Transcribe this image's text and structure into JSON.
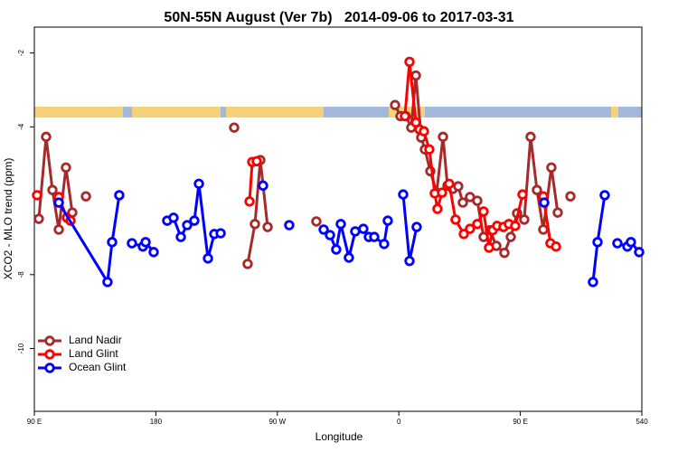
{
  "chart_data": {
    "type": "line",
    "title": "50N-55N August (Ver 7b)   2014-09-06 to 2017-03-31",
    "x_label": "Longitude",
    "y_label": "XCO2 - MLO trend (ppm)",
    "xlim": [
      90,
      540
    ],
    "xticks": [
      {
        "value": 90,
        "label": "90 E"
      },
      180,
      {
        "value": 270,
        "label": "90 W"
      },
      {
        "value": 360,
        "label": "0"
      },
      {
        "value": 450,
        "label": "90 E"
      },
      540
    ],
    "ylim": [
      -11.7,
      -1.3
    ],
    "yticks": [
      -2,
      -4,
      -8,
      -10
    ],
    "legend": "bottom-left",
    "series": [
      {
        "name": "Land Nadir",
        "color": "#a52a2a",
        "x": [
          93.3,
          98.7,
          103.4,
          108.1,
          113.4,
          118.1,
          null,
          128.2,
          null,
          238.0,
          null,
          248.0,
          253.4,
          257.4,
          262.8,
          null,
          298.9,
          null,
          357.2,
          361.2,
          365.2,
          369.2,
          372.6,
          376.6,
          379.3,
          383.3,
          388.0,
          392.7,
          396.0,
          400.0,
          404.0,
          407.4,
          412.7,
          418.1,
          422.8,
          427.5,
          432.2,
          438.2,
          442.9,
          447.6,
          452.9,
          457.6,
          462.3,
          467.0,
          473.0,
          477.7,
          null,
          487.1
        ],
        "values": [
          -6.49,
          -4.27,
          -5.71,
          -6.78,
          -5.1,
          -6.32,
          null,
          -5.88,
          null,
          -4.02,
          null,
          -7.71,
          -6.63,
          -4.9,
          -6.71,
          null,
          -6.56,
          null,
          -3.41,
          -3.71,
          -3.71,
          -4.02,
          -2.61,
          -4.29,
          -4.61,
          -5.2,
          -5.78,
          -4.27,
          -5.59,
          -5.68,
          -5.61,
          -6.05,
          -5.9,
          -6.0,
          -6.98,
          -6.8,
          -7.22,
          -7.41,
          -6.98,
          -6.34,
          -6.51,
          -4.27,
          -5.71,
          -6.78,
          -5.1,
          -6.32,
          null,
          -5.88
        ]
      },
      {
        "name": "Land Glint",
        "color": "#ff0000",
        "x": [
          92.0,
          null,
          108.1,
          114.1,
          116.8,
          null,
          249.4,
          251.4,
          254.7,
          null,
          364.5,
          367.9,
          372.6,
          375.3,
          378.6,
          382.6,
          386.6,
          388.6,
          392.0,
          397.3,
          402.0,
          408.1,
          412.7,
          418.1,
          422.8,
          426.8,
          429.5,
          432.8,
          437.5,
          441.5,
          446.2,
          451.6,
          null,
          467.0,
          472.3,
          476.4
        ],
        "values": [
          -5.85,
          null,
          -5.9,
          -6.46,
          -6.54,
          null,
          -6.02,
          -4.95,
          -4.93,
          null,
          -3.71,
          -2.24,
          -3.88,
          -4.07,
          -4.12,
          -4.61,
          -5.8,
          -6.22,
          -5.78,
          -5.54,
          -6.51,
          -6.9,
          -6.76,
          -6.63,
          -6.29,
          -7.27,
          -6.8,
          -6.68,
          -6.71,
          -6.63,
          -6.68,
          -5.83,
          null,
          -5.88,
          -7.15,
          -7.24
        ]
      },
      {
        "name": "Ocean Glint",
        "color": "#0000ff",
        "x": [
          108.1,
          144.2,
          147.6,
          152.9,
          null,
          162.3,
          170.4,
          172.4,
          178.4,
          null,
          188.4,
          193.1,
          198.5,
          203.2,
          208.5,
          211.9,
          218.6,
          223.3,
          228.0,
          null,
          259.4,
          null,
          278.8,
          null,
          304.3,
          309.0,
          313.6,
          317.0,
          323.0,
          327.7,
          333.7,
          337.8,
          341.8,
          349.1,
          351.8,
          null,
          363.2,
          367.9,
          373.2,
          null,
          467.7,
          null,
          503.8,
          507.2,
          512.5,
          null,
          521.9,
          529.3,
          531.9,
          538.0
        ],
        "values": [
          -6.05,
          -8.2,
          -7.12,
          -5.85,
          null,
          -7.15,
          -7.24,
          -7.12,
          -7.39,
          null,
          -6.54,
          -6.46,
          -6.98,
          -6.66,
          -6.54,
          -5.54,
          -7.56,
          -6.9,
          -6.88,
          null,
          -5.59,
          null,
          -6.66,
          null,
          -6.78,
          -6.93,
          -7.32,
          -6.63,
          -7.54,
          -6.83,
          -6.76,
          -6.98,
          -6.98,
          -7.17,
          -6.54,
          null,
          -5.83,
          -7.63,
          -6.71,
          null,
          -6.05,
          null,
          -8.2,
          -7.12,
          -5.85,
          null,
          -7.15,
          -7.24,
          -7.12,
          -7.39
        ]
      }
    ]
  }
}
